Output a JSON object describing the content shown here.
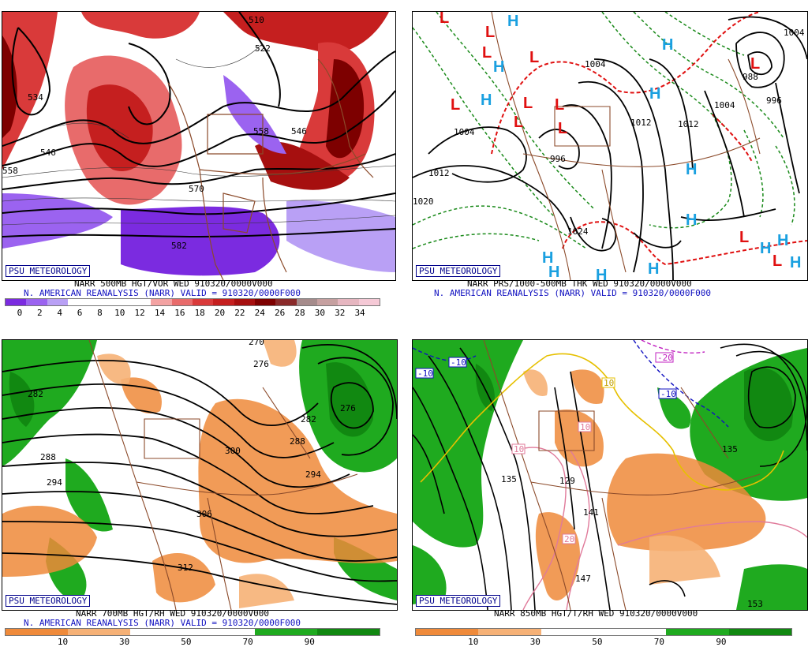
{
  "footer_badge": "PSU METEOROLOGY",
  "panels": [
    {
      "caption1": "NARR 500MB HGT/VOR WED 910320/0000V000",
      "caption2": "N. AMERICAN REANALYSIS (NARR) VALID = 910320/0000F000",
      "scale_ticks": [
        "0",
        "2",
        "4",
        "6",
        "8",
        "10",
        "12",
        "14",
        "16",
        "18",
        "20",
        "22",
        "24",
        "26",
        "28",
        "30",
        "32",
        "34"
      ],
      "contour_labels": [
        "534",
        "546",
        "558",
        "570",
        "582",
        "510",
        "522",
        "546",
        "558"
      ]
    },
    {
      "caption1": "NARR PRS/1000-500MB THK WED 910320/0000V000",
      "caption2": "N. AMERICAN REANALYSIS (NARR) VALID = 910320/0000F000",
      "contour_labels": [
        "1004",
        "1012",
        "1020",
        "996",
        "1004",
        "1012",
        "1012",
        "1024",
        "1004",
        "996",
        "988",
        "1004"
      ],
      "high_symbol": "H",
      "low_symbol": "L"
    },
    {
      "caption1": "NARR 700MB HGT/RH WED 910320/0000V000",
      "caption2": "N. AMERICAN REANALYSIS (NARR) VALID = 910320/0000F000",
      "scale_ticks": [
        "10",
        "30",
        "50",
        "70",
        "90"
      ],
      "contour_labels": [
        "276",
        "282",
        "288",
        "294",
        "300",
        "306",
        "312",
        "270",
        "276",
        "282",
        "288",
        "294"
      ]
    },
    {
      "caption1": "NARR 850MB HGT/T/RH WED 910320/0000V000",
      "caption2": "",
      "scale_ticks": [
        "10",
        "30",
        "50",
        "70",
        "90"
      ],
      "contour_labels": [
        "135",
        "129",
        "141",
        "147",
        "153",
        "135",
        "-10",
        "-10",
        "-10",
        "-20",
        "10",
        "10",
        "10",
        "20"
      ]
    }
  ],
  "colors": {
    "vort_scale": [
      "#7b2be0",
      "#9b63f0",
      "#b9a0f5",
      "#ffffff",
      "#ffffff",
      "#ffffff",
      "#ffffff",
      "#f3a2a2",
      "#e86b6b",
      "#d93a3a",
      "#c51f1f",
      "#a60f0f",
      "#7d0000",
      "#8a2a2a",
      "#a58b8b",
      "#c6a0a0",
      "#e6b6c0",
      "#f5c9d6"
    ],
    "rh_scale": [
      "#ef8a3a",
      "#f6b176",
      "#ffffff",
      "#ffffff",
      "#1faa1f",
      "#118811"
    ],
    "land_border": "#8b4a2a"
  }
}
